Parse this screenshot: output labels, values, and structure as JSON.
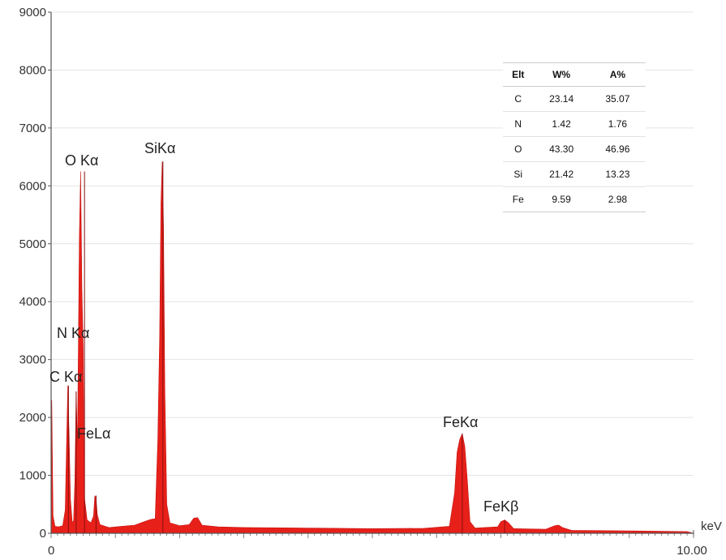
{
  "chart_data": {
    "type": "line",
    "xlabel": "keV",
    "xlim": [
      0,
      10
    ],
    "ylim": [
      0,
      9000
    ],
    "x_ticks": [
      {
        "value": 0,
        "label": "0"
      },
      {
        "value": 10,
        "label": "10.00"
      }
    ],
    "y_ticks": [
      0,
      1000,
      2000,
      3000,
      4000,
      5000,
      6000,
      7000,
      8000,
      9000
    ],
    "fill_color": "#e8201a",
    "peaks": [
      {
        "label": "C Kα",
        "x": 0.27,
        "y": 2550
      },
      {
        "label": "N Kα",
        "x": 0.39,
        "y": 2450
      },
      {
        "label": "O Kα",
        "x": 0.52,
        "y": 6250
      },
      {
        "label": "FeLα",
        "x": 0.7,
        "y": 650
      },
      {
        "label": "SiKα",
        "x": 1.74,
        "y": 6420
      },
      {
        "label": "FeKα",
        "x": 6.4,
        "y": 1720
      },
      {
        "label": "FeKβ",
        "x": 7.06,
        "y": 230
      }
    ],
    "spectrum": [
      [
        0.0,
        0
      ],
      [
        0.01,
        2300
      ],
      [
        0.03,
        300
      ],
      [
        0.06,
        120
      ],
      [
        0.12,
        110
      ],
      [
        0.18,
        130
      ],
      [
        0.22,
        400
      ],
      [
        0.24,
        1500
      ],
      [
        0.26,
        2550
      ],
      [
        0.28,
        1700
      ],
      [
        0.3,
        600
      ],
      [
        0.33,
        180
      ],
      [
        0.35,
        220
      ],
      [
        0.37,
        900
      ],
      [
        0.39,
        2450
      ],
      [
        0.41,
        1500
      ],
      [
        0.44,
        5100
      ],
      [
        0.46,
        6250
      ],
      [
        0.48,
        4200
      ],
      [
        0.5,
        3200
      ],
      [
        0.52,
        600
      ],
      [
        0.56,
        230
      ],
      [
        0.62,
        180
      ],
      [
        0.66,
        300
      ],
      [
        0.68,
        650
      ],
      [
        0.7,
        600
      ],
      [
        0.72,
        320
      ],
      [
        0.76,
        150
      ],
      [
        0.9,
        100
      ],
      [
        1.1,
        120
      ],
      [
        1.3,
        140
      ],
      [
        1.45,
        200
      ],
      [
        1.55,
        240
      ],
      [
        1.62,
        250
      ],
      [
        1.66,
        1600
      ],
      [
        1.69,
        3400
      ],
      [
        1.71,
        5700
      ],
      [
        1.73,
        6420
      ],
      [
        1.75,
        5300
      ],
      [
        1.77,
        2500
      ],
      [
        1.8,
        500
      ],
      [
        1.85,
        180
      ],
      [
        2.0,
        130
      ],
      [
        2.15,
        150
      ],
      [
        2.22,
        260
      ],
      [
        2.28,
        270
      ],
      [
        2.35,
        140
      ],
      [
        2.6,
        110
      ],
      [
        3.0,
        100
      ],
      [
        4.0,
        90
      ],
      [
        5.0,
        80
      ],
      [
        5.8,
        85
      ],
      [
        6.2,
        120
      ],
      [
        6.28,
        700
      ],
      [
        6.32,
        1400
      ],
      [
        6.36,
        1620
      ],
      [
        6.4,
        1720
      ],
      [
        6.44,
        1500
      ],
      [
        6.48,
        900
      ],
      [
        6.52,
        200
      ],
      [
        6.6,
        90
      ],
      [
        6.95,
        110
      ],
      [
        7.0,
        200
      ],
      [
        7.06,
        230
      ],
      [
        7.12,
        180
      ],
      [
        7.2,
        80
      ],
      [
        7.7,
        70
      ],
      [
        7.84,
        130
      ],
      [
        7.9,
        140
      ],
      [
        7.96,
        100
      ],
      [
        8.1,
        50
      ],
      [
        9.0,
        40
      ],
      [
        9.9,
        30
      ],
      [
        10.0,
        0
      ]
    ]
  },
  "composition_table": {
    "headers": [
      "Elt",
      "W%",
      "A%"
    ],
    "rows": [
      [
        "C",
        "23.14",
        "35.07"
      ],
      [
        "N",
        "1.42",
        "1.76"
      ],
      [
        "O",
        "43.30",
        "46.96"
      ],
      [
        "Si",
        "21.42",
        "13.23"
      ],
      [
        "Fe",
        "9.59",
        "2.98"
      ]
    ]
  }
}
